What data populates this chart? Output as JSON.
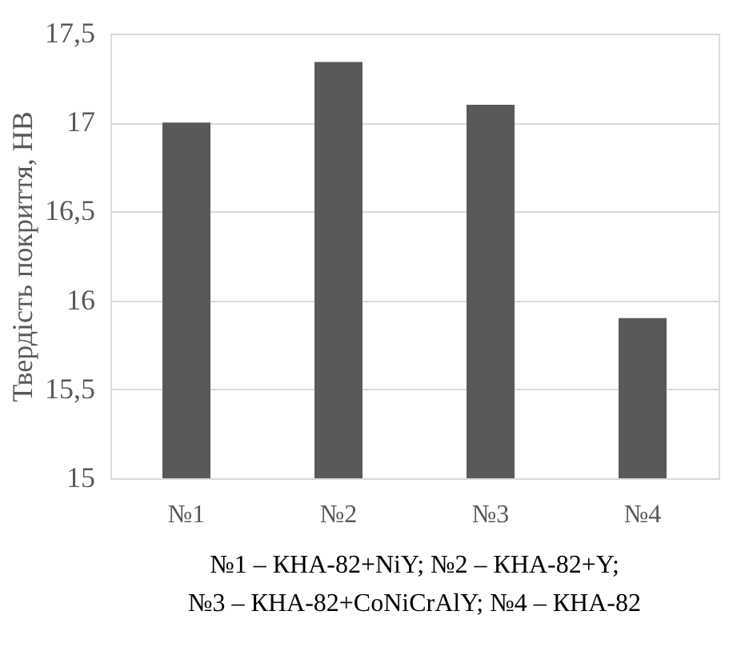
{
  "chart_data": {
    "type": "bar",
    "ylabel": "Твердість покриття, HB",
    "categories": [
      "№1",
      "№2",
      "№3",
      "№4"
    ],
    "values": [
      17.0,
      17.34,
      17.1,
      15.9
    ],
    "color": "#595959",
    "ylim": [
      15,
      17.5
    ],
    "yticks": [
      {
        "value": 15,
        "label": "15"
      },
      {
        "value": 15.5,
        "label": "15,5"
      },
      {
        "value": 16,
        "label": "16"
      },
      {
        "value": 16.5,
        "label": "16,5"
      },
      {
        "value": 17,
        "label": "17"
      },
      {
        "value": 17.5,
        "label": "17,5"
      }
    ],
    "grid": "y",
    "annotations": [
      "№1 – КНА-82+NiY; №2 – КНА-82+Y;",
      "№3 – КНА-82+CoNiCrAlY; №4 – КНА-82"
    ]
  }
}
